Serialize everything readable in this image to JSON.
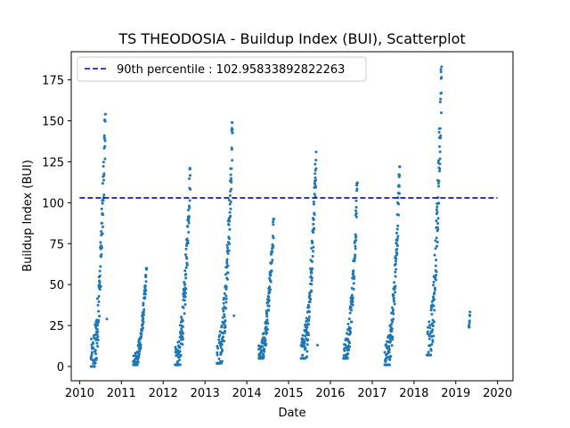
{
  "chart_data": {
    "type": "scatter",
    "title": "TS THEODOSIA - Buildup Index (BUI), Scatterplot",
    "xlabel": "Date",
    "ylabel": "Buildup Index (BUI)",
    "x_ticks": [
      "2010",
      "2011",
      "2012",
      "2013",
      "2014",
      "2015",
      "2016",
      "2017",
      "2018",
      "2019",
      "2020"
    ],
    "y_ticks": [
      0,
      25,
      50,
      75,
      100,
      125,
      150,
      175
    ],
    "xlim": [
      "2009-10-20",
      "2020-05-15"
    ],
    "ylim": [
      -8.7,
      192.2
    ],
    "grid": false,
    "legend_position": "upper left",
    "reference_line": {
      "label": "90th percentile : 102.95833892822263",
      "value": 102.95833892822263,
      "x_start": "2010-01-01",
      "x_end": "2019-12-31",
      "style": "dashed",
      "color": "#0000cc"
    },
    "series_color": "#1f77b4",
    "seasons": [
      {
        "start": "2010-04-10",
        "end": "2010-08-15",
        "min": 0,
        "max": 154,
        "late": 29
      },
      {
        "start": "2011-04-15",
        "end": "2011-08-10",
        "min": 1,
        "max": 60,
        "late": null
      },
      {
        "start": "2012-04-15",
        "end": "2012-08-25",
        "min": 1,
        "max": 121,
        "late": null
      },
      {
        "start": "2013-04-15",
        "end": "2013-08-30",
        "min": 2,
        "max": 149,
        "late": 31
      },
      {
        "start": "2014-04-15",
        "end": "2014-08-25",
        "min": 5,
        "max": 90,
        "late": null
      },
      {
        "start": "2015-04-20",
        "end": "2015-08-30",
        "min": 5,
        "max": 131,
        "late": 13
      },
      {
        "start": "2016-04-25",
        "end": "2016-08-25",
        "min": 5,
        "max": 112,
        "late": null
      },
      {
        "start": "2017-04-20",
        "end": "2017-08-30",
        "min": 1,
        "max": 122,
        "late": null
      },
      {
        "start": "2018-04-25",
        "end": "2018-08-30",
        "min": 7,
        "max": 183,
        "late": null
      },
      {
        "start": "2019-04-25",
        "end": "2019-05-05",
        "min": 24,
        "max": 34,
        "late": null
      }
    ]
  }
}
